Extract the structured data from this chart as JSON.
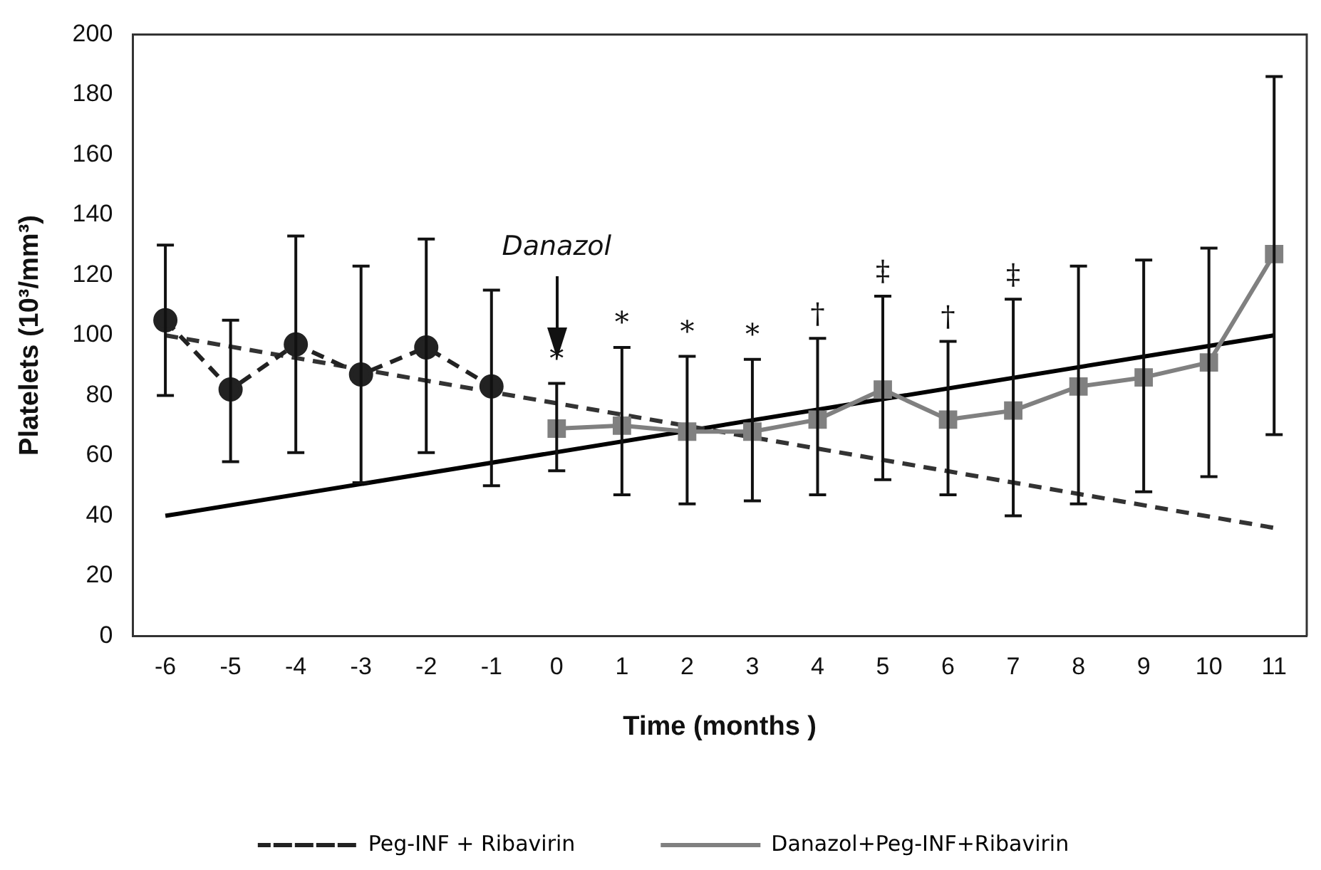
{
  "chart_data": {
    "type": "line",
    "xlabel": "Time (months )",
    "ylabel": "Platelets (10³/mm³)",
    "categories": [
      "-6",
      "-5",
      "-4",
      "-3",
      "-2",
      "-1",
      "0",
      "1",
      "2",
      "3",
      "4",
      "5",
      "6",
      "7",
      "8",
      "9",
      "10",
      "11"
    ],
    "ylim": [
      0,
      200
    ],
    "yticks": [
      0,
      20,
      40,
      60,
      80,
      100,
      120,
      140,
      160,
      180,
      200
    ],
    "grid": false,
    "legend": "bottom",
    "series": [
      {
        "name": "Peg-INF + Ribavirin",
        "color": "#222222",
        "marker": "circle",
        "line_style": "dashed",
        "values": [
          105,
          82,
          97,
          87,
          96,
          83,
          null,
          null,
          null,
          null,
          null,
          null,
          null,
          null,
          null,
          null,
          null,
          null
        ],
        "errors": [
          [
            80,
            130
          ],
          [
            58,
            105
          ],
          [
            61,
            133
          ],
          [
            51,
            123
          ],
          [
            61,
            132
          ],
          [
            50,
            115
          ],
          null,
          null,
          null,
          null,
          null,
          null,
          null,
          null,
          null,
          null,
          null,
          null
        ]
      },
      {
        "name": "Danazol+Peg-INF+Ribavirin",
        "color": "#808080",
        "marker": "square",
        "line_style": "solid",
        "values": [
          null,
          null,
          null,
          null,
          null,
          null,
          69,
          70,
          68,
          68,
          72,
          82,
          72,
          75,
          83,
          86,
          91,
          127
        ],
        "errors": [
          null,
          null,
          null,
          null,
          null,
          null,
          [
            55,
            84
          ],
          [
            47,
            96
          ],
          [
            44,
            93
          ],
          [
            45,
            92
          ],
          [
            47,
            99
          ],
          [
            52,
            113
          ],
          [
            47,
            98
          ],
          [
            40,
            112
          ],
          [
            44,
            123
          ],
          [
            48,
            125
          ],
          [
            53,
            129
          ],
          [
            67,
            186
          ]
        ]
      },
      {
        "type": "line",
        "color": "#333333",
        "marker": "none",
        "line_style": "dashed",
        "x": [
          "-6",
          "11"
        ],
        "values": [
          100,
          36
        ]
      },
      {
        "type": "line",
        "color": "#000000",
        "marker": "none",
        "line_style": "solid",
        "x": [
          "-6",
          "11"
        ],
        "values": [
          40,
          100
        ]
      }
    ],
    "annotations": [
      "Danazol",
      "*",
      "*",
      "*",
      "*",
      "†",
      "‡",
      "†",
      "‡"
    ]
  }
}
